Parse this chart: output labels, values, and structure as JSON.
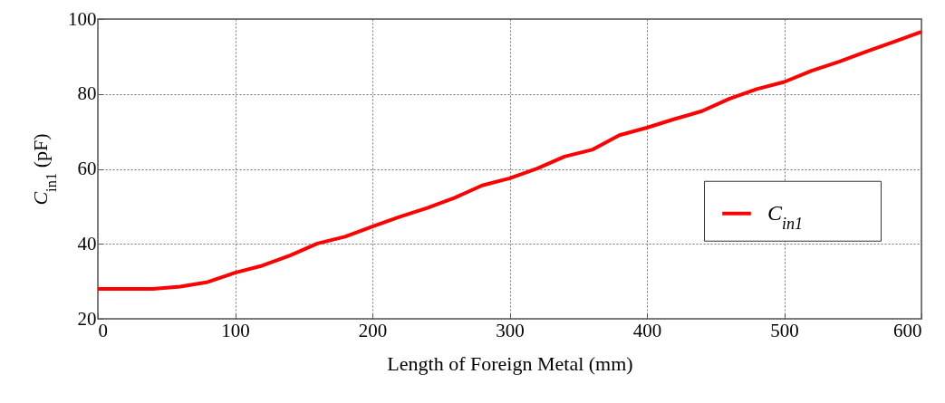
{
  "chart_data": {
    "type": "line",
    "xlabel": "Length of Foreign Metal (mm)",
    "ylabel": "C$_{in1}$ (pF)",
    "x": [
      0,
      20,
      40,
      60,
      80,
      100,
      120,
      140,
      160,
      180,
      200,
      220,
      240,
      260,
      280,
      300,
      320,
      340,
      360,
      380,
      400,
      420,
      440,
      460,
      480,
      500,
      520,
      540,
      560,
      580,
      600
    ],
    "series": [
      {
        "name": "C$_{in1}$",
        "color": "#ff0000",
        "values": [
          28,
          28,
          28,
          28.6,
          29.8,
          32.3,
          34.2,
          36.9,
          40.1,
          41.9,
          44.6,
          47.2,
          49.6,
          52.3,
          55.6,
          57.5,
          60.1,
          63.3,
          65.1,
          69,
          71,
          73.3,
          75.4,
          78.7,
          81.3,
          83.2,
          86.2,
          88.6,
          91.3,
          93.9,
          96.6
        ]
      }
    ],
    "xlim": [
      0,
      600
    ],
    "xticks": [
      0,
      100,
      200,
      300,
      400,
      500,
      600
    ],
    "ylim": [
      20,
      100
    ],
    "yticks": [
      20,
      40,
      60,
      80,
      100
    ],
    "grid": true,
    "legend": "right",
    "line_style": "solid",
    "marker": "none"
  }
}
